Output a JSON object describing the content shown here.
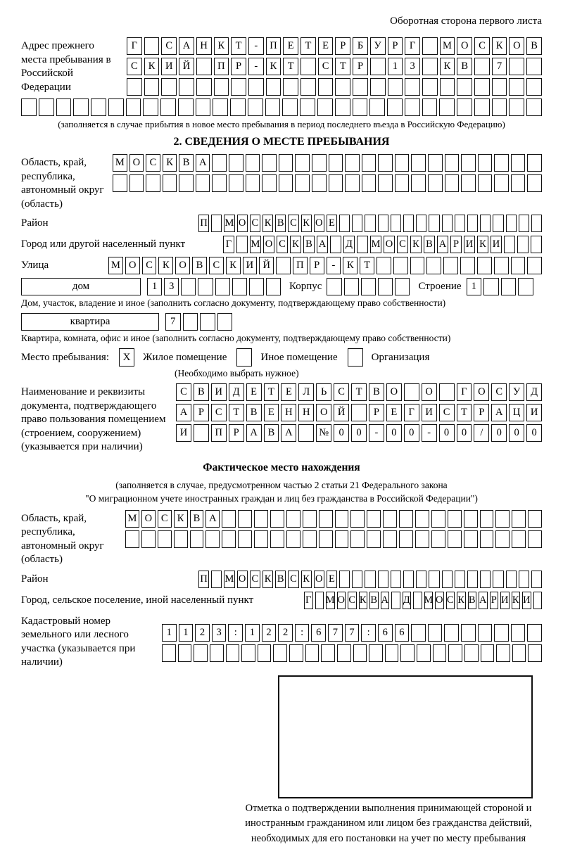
{
  "page": {
    "header_note": "Оборотная сторона первого листа"
  },
  "prev_address": {
    "label": "Адрес прежнего места пребывания в Российской Федерации",
    "row1": {
      "len": 24,
      "text": "Г САНКТ-ПЕТЕРБУРГ МОСКОВ"
    },
    "row2": {
      "len": 24,
      "text": "СКИЙ ПР-КТ СТР 13 КВ 7"
    },
    "row3": {
      "len": 24,
      "text": ""
    },
    "row4": {
      "len": 30,
      "text": ""
    },
    "note": "(заполняется в случае прибытия в новое место пребывания в период последнего въезда в Российскую Федерацию)"
  },
  "section2": {
    "title": "2. СВЕДЕНИЯ О МЕСТЕ ПРЕБЫВАНИЯ",
    "oblast": {
      "label": "Область, край, республика, автономный округ (область)",
      "row1": {
        "len": 26,
        "text": "МОСКВА"
      },
      "row2": {
        "len": 26,
        "text": ""
      }
    },
    "raion": {
      "label": "Район",
      "row": {
        "len": 27,
        "text": "П МОСКВСКОЕ"
      }
    },
    "gorod": {
      "label": "Город или другой населенный пункт",
      "row": {
        "len": 24,
        "text": "Г МОСКВА Д МОСКВАРИКИ"
      }
    },
    "ulitsa": {
      "label": "Улица",
      "row": {
        "len": 26,
        "text": "МОСКОВСКИЙ ПР-КТ"
      }
    },
    "dom": {
      "box_label": "дом",
      "row": {
        "len": 8,
        "text": "13"
      },
      "korpus_label": "Корпус",
      "korpus_row": {
        "len": 5,
        "text": ""
      },
      "stroenie_label": "Строение",
      "stroenie_row": {
        "len": 4,
        "text": "1"
      },
      "note": "Дом, участок, владение и иное (заполнить согласно документу, подтверждающему право собственности)"
    },
    "kvartira": {
      "box_label": "квартира",
      "row": {
        "len": 4,
        "text": "7"
      },
      "note": "Квартира, комната, офис и иное (заполнить согласно документу, подтверждающему право собственности)"
    },
    "mesto": {
      "label": "Место пребывания:",
      "options": [
        {
          "label": "Жилое помещение",
          "mark": "X"
        },
        {
          "label": "Иное помещение",
          "mark": ""
        },
        {
          "label": "Организация",
          "mark": ""
        }
      ],
      "note": "(Необходимо выбрать нужное)"
    },
    "dokument": {
      "label": "Наименование и реквизиты документа, подтверждающего право пользования помещением (строением, сооружением) (указывается при наличии)",
      "row1": {
        "len": 21,
        "text": "СВИДЕТЕЛЬСТВО О ГОСУД"
      },
      "row2": {
        "len": 21,
        "text": "АРСТВЕННОЙ РЕГИСТРАЦИ"
      },
      "row3": {
        "len": 21,
        "text": "И ПРАВА №00-00-00/000"
      }
    }
  },
  "fakt": {
    "title": "Фактическое место нахождения",
    "note1": "(заполняется в случае, предусмотренном частью 2 статьи 21 Федерального закона",
    "note2": "\"О миграционном учете иностранных граждан и лиц без гражданства в Российской Федерации\")",
    "oblast": {
      "label": "Область, край, республика, автономный округ (область)",
      "row1": {
        "len": 26,
        "text": "МОСКВА"
      },
      "row2": {
        "len": 26,
        "text": ""
      }
    },
    "raion": {
      "label": "Район",
      "row": {
        "len": 27,
        "text": "П МОСКВСКОЕ"
      }
    },
    "gorod": {
      "label": "Город, сельское поселение, иной населенный пункт",
      "row": {
        "len": 22,
        "text": "Г МОСКВА Д МОСКВАРИКИ"
      }
    },
    "kadastr": {
      "label": "Кадастровый номер земельного или лесного участка (указывается при наличии)",
      "row1": {
        "len": 23,
        "text": "1123:122:677:66"
      },
      "row2": {
        "len": 24,
        "text": ""
      }
    },
    "stamp_caption": "Отметка о подтверждении выполнения принимающей стороной и иностранным гражданином или лицом без гражданства действий, необходимых для его постановки на учет по месту пребывания"
  }
}
